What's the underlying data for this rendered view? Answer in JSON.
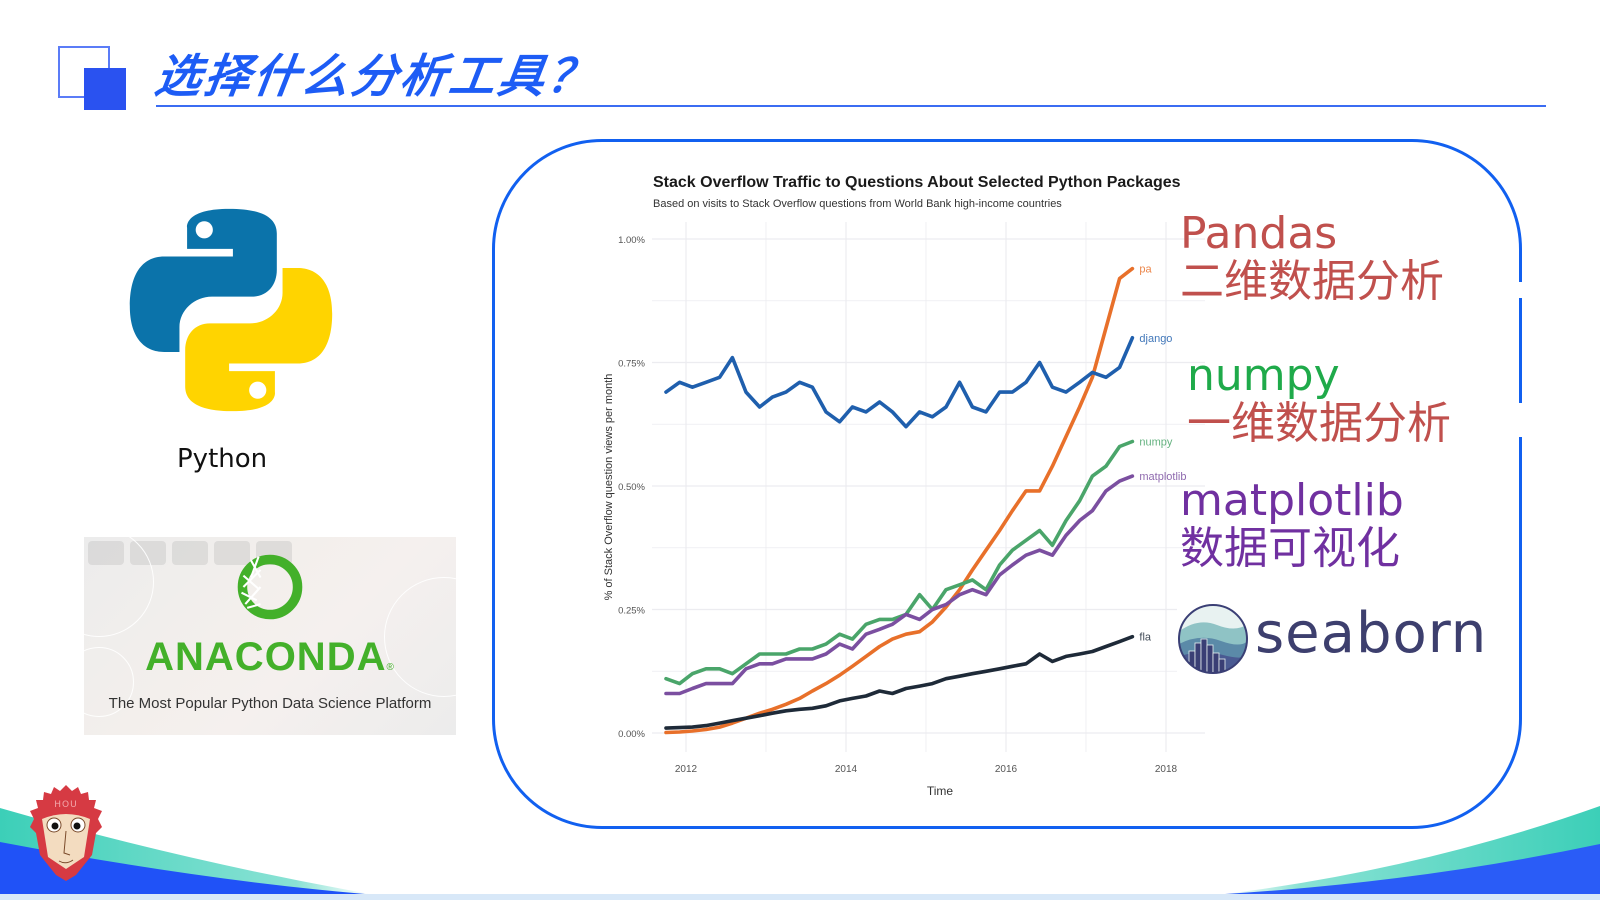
{
  "slide": {
    "title": "选择什么分析工具？",
    "accent_color": "#1d5cf5"
  },
  "left_panel": {
    "python": {
      "label": "Python",
      "colors": {
        "blue": "#0b73aa",
        "yellow": "#ffd400"
      }
    },
    "anaconda": {
      "wordmark": "ANACONDA",
      "registered": "®",
      "tagline": "The Most Popular Python Data Science Platform",
      "color": "#43b02a"
    }
  },
  "annotations": {
    "pandas": {
      "name": "Pandas",
      "desc": "二维数据分析",
      "color": "#c0504d"
    },
    "numpy": {
      "name": "numpy",
      "desc": "一维数据分析",
      "color": "#1faa4a",
      "desc_color": "#c0504d"
    },
    "matplotlib": {
      "name": "matplotlib",
      "desc": "数据可视化",
      "color": "#7030a0"
    },
    "seaborn": {
      "name": "seaborn",
      "color": "#3d3f6e"
    }
  },
  "footer": {
    "mascot_text": "HOU"
  },
  "chart_data": {
    "type": "line",
    "title": "Stack Overflow Traffic to Questions About Selected Python Packages",
    "subtitle": "Based on visits to Stack Overflow questions from World Bank high-income countries",
    "xlabel": "Time",
    "ylabel": "% of Stack Overflow question views per month",
    "x_ticks": [
      "2012",
      "2014",
      "2016",
      "2018"
    ],
    "y_ticks": [
      "0.00%",
      "0.25%",
      "0.50%",
      "0.75%",
      "1.00%"
    ],
    "xlim": [
      2011.8,
      2018.4
    ],
    "ylim": [
      0,
      1.0
    ],
    "grid": true,
    "legend": "direct-labels-at-line-end",
    "x": [
      2011.75,
      2011.92,
      2012.08,
      2012.25,
      2012.42,
      2012.58,
      2012.75,
      2012.92,
      2013.08,
      2013.25,
      2013.42,
      2013.58,
      2013.75,
      2013.92,
      2014.08,
      2014.25,
      2014.42,
      2014.58,
      2014.75,
      2014.92,
      2015.08,
      2015.25,
      2015.42,
      2015.58,
      2015.75,
      2015.92,
      2016.08,
      2016.25,
      2016.42,
      2016.58,
      2016.75,
      2016.92,
      2017.08,
      2017.25,
      2017.42,
      2017.58
    ],
    "series": [
      {
        "name": "pandas",
        "label": "pa",
        "color": "#e8702a",
        "values": [
          0.001,
          0.002,
          0.004,
          0.007,
          0.012,
          0.02,
          0.03,
          0.04,
          0.048,
          0.058,
          0.07,
          0.085,
          0.1,
          0.117,
          0.135,
          0.155,
          0.175,
          0.19,
          0.2,
          0.205,
          0.225,
          0.255,
          0.29,
          0.33,
          0.37,
          0.41,
          0.45,
          0.49,
          0.49,
          0.54,
          0.6,
          0.66,
          0.72,
          0.82,
          0.92,
          0.94
        ]
      },
      {
        "name": "django",
        "label": "django",
        "color": "#1f5fad",
        "values": [
          0.69,
          0.71,
          0.7,
          0.71,
          0.72,
          0.76,
          0.69,
          0.66,
          0.68,
          0.69,
          0.71,
          0.7,
          0.65,
          0.63,
          0.66,
          0.65,
          0.67,
          0.65,
          0.62,
          0.65,
          0.64,
          0.66,
          0.71,
          0.66,
          0.65,
          0.69,
          0.69,
          0.71,
          0.75,
          0.7,
          0.69,
          0.71,
          0.73,
          0.72,
          0.74,
          0.8
        ]
      },
      {
        "name": "numpy",
        "label": "numpy",
        "color": "#4aa56a",
        "values": [
          0.11,
          0.1,
          0.12,
          0.13,
          0.13,
          0.12,
          0.14,
          0.16,
          0.16,
          0.16,
          0.17,
          0.17,
          0.18,
          0.2,
          0.19,
          0.22,
          0.23,
          0.23,
          0.24,
          0.28,
          0.25,
          0.29,
          0.3,
          0.31,
          0.29,
          0.34,
          0.37,
          0.39,
          0.41,
          0.38,
          0.43,
          0.47,
          0.52,
          0.54,
          0.58,
          0.59
        ]
      },
      {
        "name": "matplotlib",
        "label": "matplotlib",
        "color": "#7b4fa0",
        "values": [
          0.08,
          0.08,
          0.09,
          0.1,
          0.1,
          0.1,
          0.13,
          0.14,
          0.14,
          0.15,
          0.15,
          0.15,
          0.16,
          0.18,
          0.17,
          0.2,
          0.21,
          0.22,
          0.24,
          0.23,
          0.25,
          0.26,
          0.28,
          0.29,
          0.28,
          0.32,
          0.34,
          0.36,
          0.37,
          0.36,
          0.4,
          0.43,
          0.45,
          0.49,
          0.51,
          0.52
        ]
      },
      {
        "name": "flask",
        "label": "fla",
        "color": "#1e2a38",
        "values": [
          0.01,
          0.011,
          0.012,
          0.015,
          0.02,
          0.025,
          0.03,
          0.035,
          0.04,
          0.045,
          0.048,
          0.05,
          0.055,
          0.065,
          0.07,
          0.075,
          0.085,
          0.08,
          0.09,
          0.095,
          0.1,
          0.11,
          0.115,
          0.12,
          0.125,
          0.13,
          0.135,
          0.14,
          0.16,
          0.145,
          0.155,
          0.16,
          0.165,
          0.175,
          0.185,
          0.195
        ]
      }
    ]
  }
}
